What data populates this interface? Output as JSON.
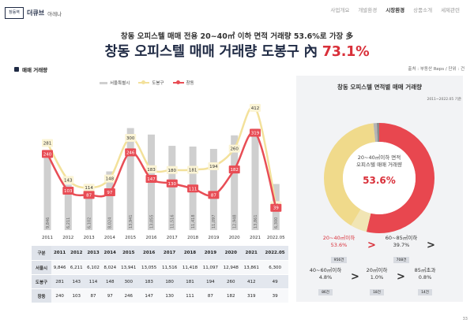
{
  "header": {
    "logo_box": "창동역",
    "logo_name": "더큐브",
    "logo_sub": "아레나",
    "nav": [
      "사업개요",
      "개발환경",
      "시장환경",
      "상품소개",
      "세제관련"
    ],
    "nav_active_index": 2
  },
  "subtitle": "창동 오피스텔 매매 전용 20~40㎡ 이하 면적 거래량 53.6%로 가장 多",
  "title": {
    "prefix": "창동 오피스텔 매매 거래량 도봉구 內",
    "highlight": "73.1%"
  },
  "section": {
    "label": "매매 거래량",
    "unit": "출처 : 부동산 Reps / 단위 : 건"
  },
  "chart_data": {
    "type": "bar+line",
    "categories": [
      "2011",
      "2012",
      "2013",
      "2014",
      "2015",
      "2016",
      "2017",
      "2018",
      "2019",
      "2020",
      "2021",
      "2022.05"
    ],
    "series": [
      {
        "name": "서울특별시",
        "kind": "bar",
        "color": "#cfcfcf",
        "values": [
          9846,
          6211,
          6102,
          8024,
          13941,
          13055,
          11516,
          11418,
          11097,
          12948,
          13861,
          6300
        ]
      },
      {
        "name": "도봉구",
        "kind": "line",
        "color": "#f3e19b",
        "values": [
          281,
          143,
          114,
          148,
          300,
          183,
          180,
          181,
          194,
          260,
          412,
          49
        ]
      },
      {
        "name": "창동",
        "kind": "line",
        "color": "#e84d55",
        "values": [
          240,
          103,
          87,
          97,
          246,
          147,
          130,
          111,
          87,
          182,
          319,
          39
        ]
      }
    ]
  },
  "table": {
    "header": [
      "구분",
      "2011",
      "2012",
      "2013",
      "2014",
      "2015",
      "2016",
      "2017",
      "2018",
      "2019",
      "2020",
      "2021",
      "2022.05"
    ],
    "rows": [
      {
        "label": "서울시",
        "values": [
          "9,846",
          "6,211",
          "6,102",
          "8,024",
          "13,941",
          "13,055",
          "11,516",
          "11,418",
          "11,097",
          "12,948",
          "13,861",
          "6,300"
        ]
      },
      {
        "label": "도봉구",
        "values": [
          "281",
          "143",
          "114",
          "148",
          "300",
          "183",
          "180",
          "181",
          "194",
          "260",
          "412",
          "49"
        ]
      },
      {
        "label": "창동",
        "values": [
          "240",
          "103",
          "87",
          "97",
          "246",
          "147",
          "130",
          "111",
          "87",
          "182",
          "319",
          "39"
        ]
      }
    ]
  },
  "panel": {
    "title": "창동 오피스텔 면적별 매매 거래량",
    "date": "2011~2022.05 기준",
    "donut": {
      "center_line1": "20~40㎡이하 면적",
      "center_line2": "오피스텔 매매 거래량",
      "center_pct": "53.6%",
      "slices": [
        {
          "name": "20~40㎡이하",
          "value": 53.6,
          "color": "#e8474f"
        },
        {
          "name": "40~60㎡이하",
          "value": 4.8,
          "color": "#f1e5b4"
        },
        {
          "name": "60~85㎡이하",
          "value": 39.7,
          "color": "#f0da8b"
        },
        {
          "name": "20㎡이하",
          "value": 1.0,
          "color": "#b5b5b5"
        },
        {
          "name": "85㎡초과",
          "value": 0.8,
          "color": "#8a8a8a"
        }
      ]
    },
    "cards": [
      {
        "label": "20~40㎡이하",
        "pct": "53.6%",
        "count": "956건"
      },
      {
        "label": "60~85㎡이하",
        "pct": "39.7%",
        "count": "708건"
      },
      {
        "label": "40~60㎡이하",
        "pct": "4.8%",
        "count": "86건"
      },
      {
        "label": "20㎡이하",
        "pct": "1.0%",
        "count": "18건"
      },
      {
        "label": "85㎡초과",
        "pct": "0.8%",
        "count": "14건"
      }
    ],
    "arrow": ">"
  },
  "page_number": "33",
  "colors": {
    "navy": "#1f2a44",
    "red": "#d9303a",
    "yellow": "#f0da8b"
  }
}
